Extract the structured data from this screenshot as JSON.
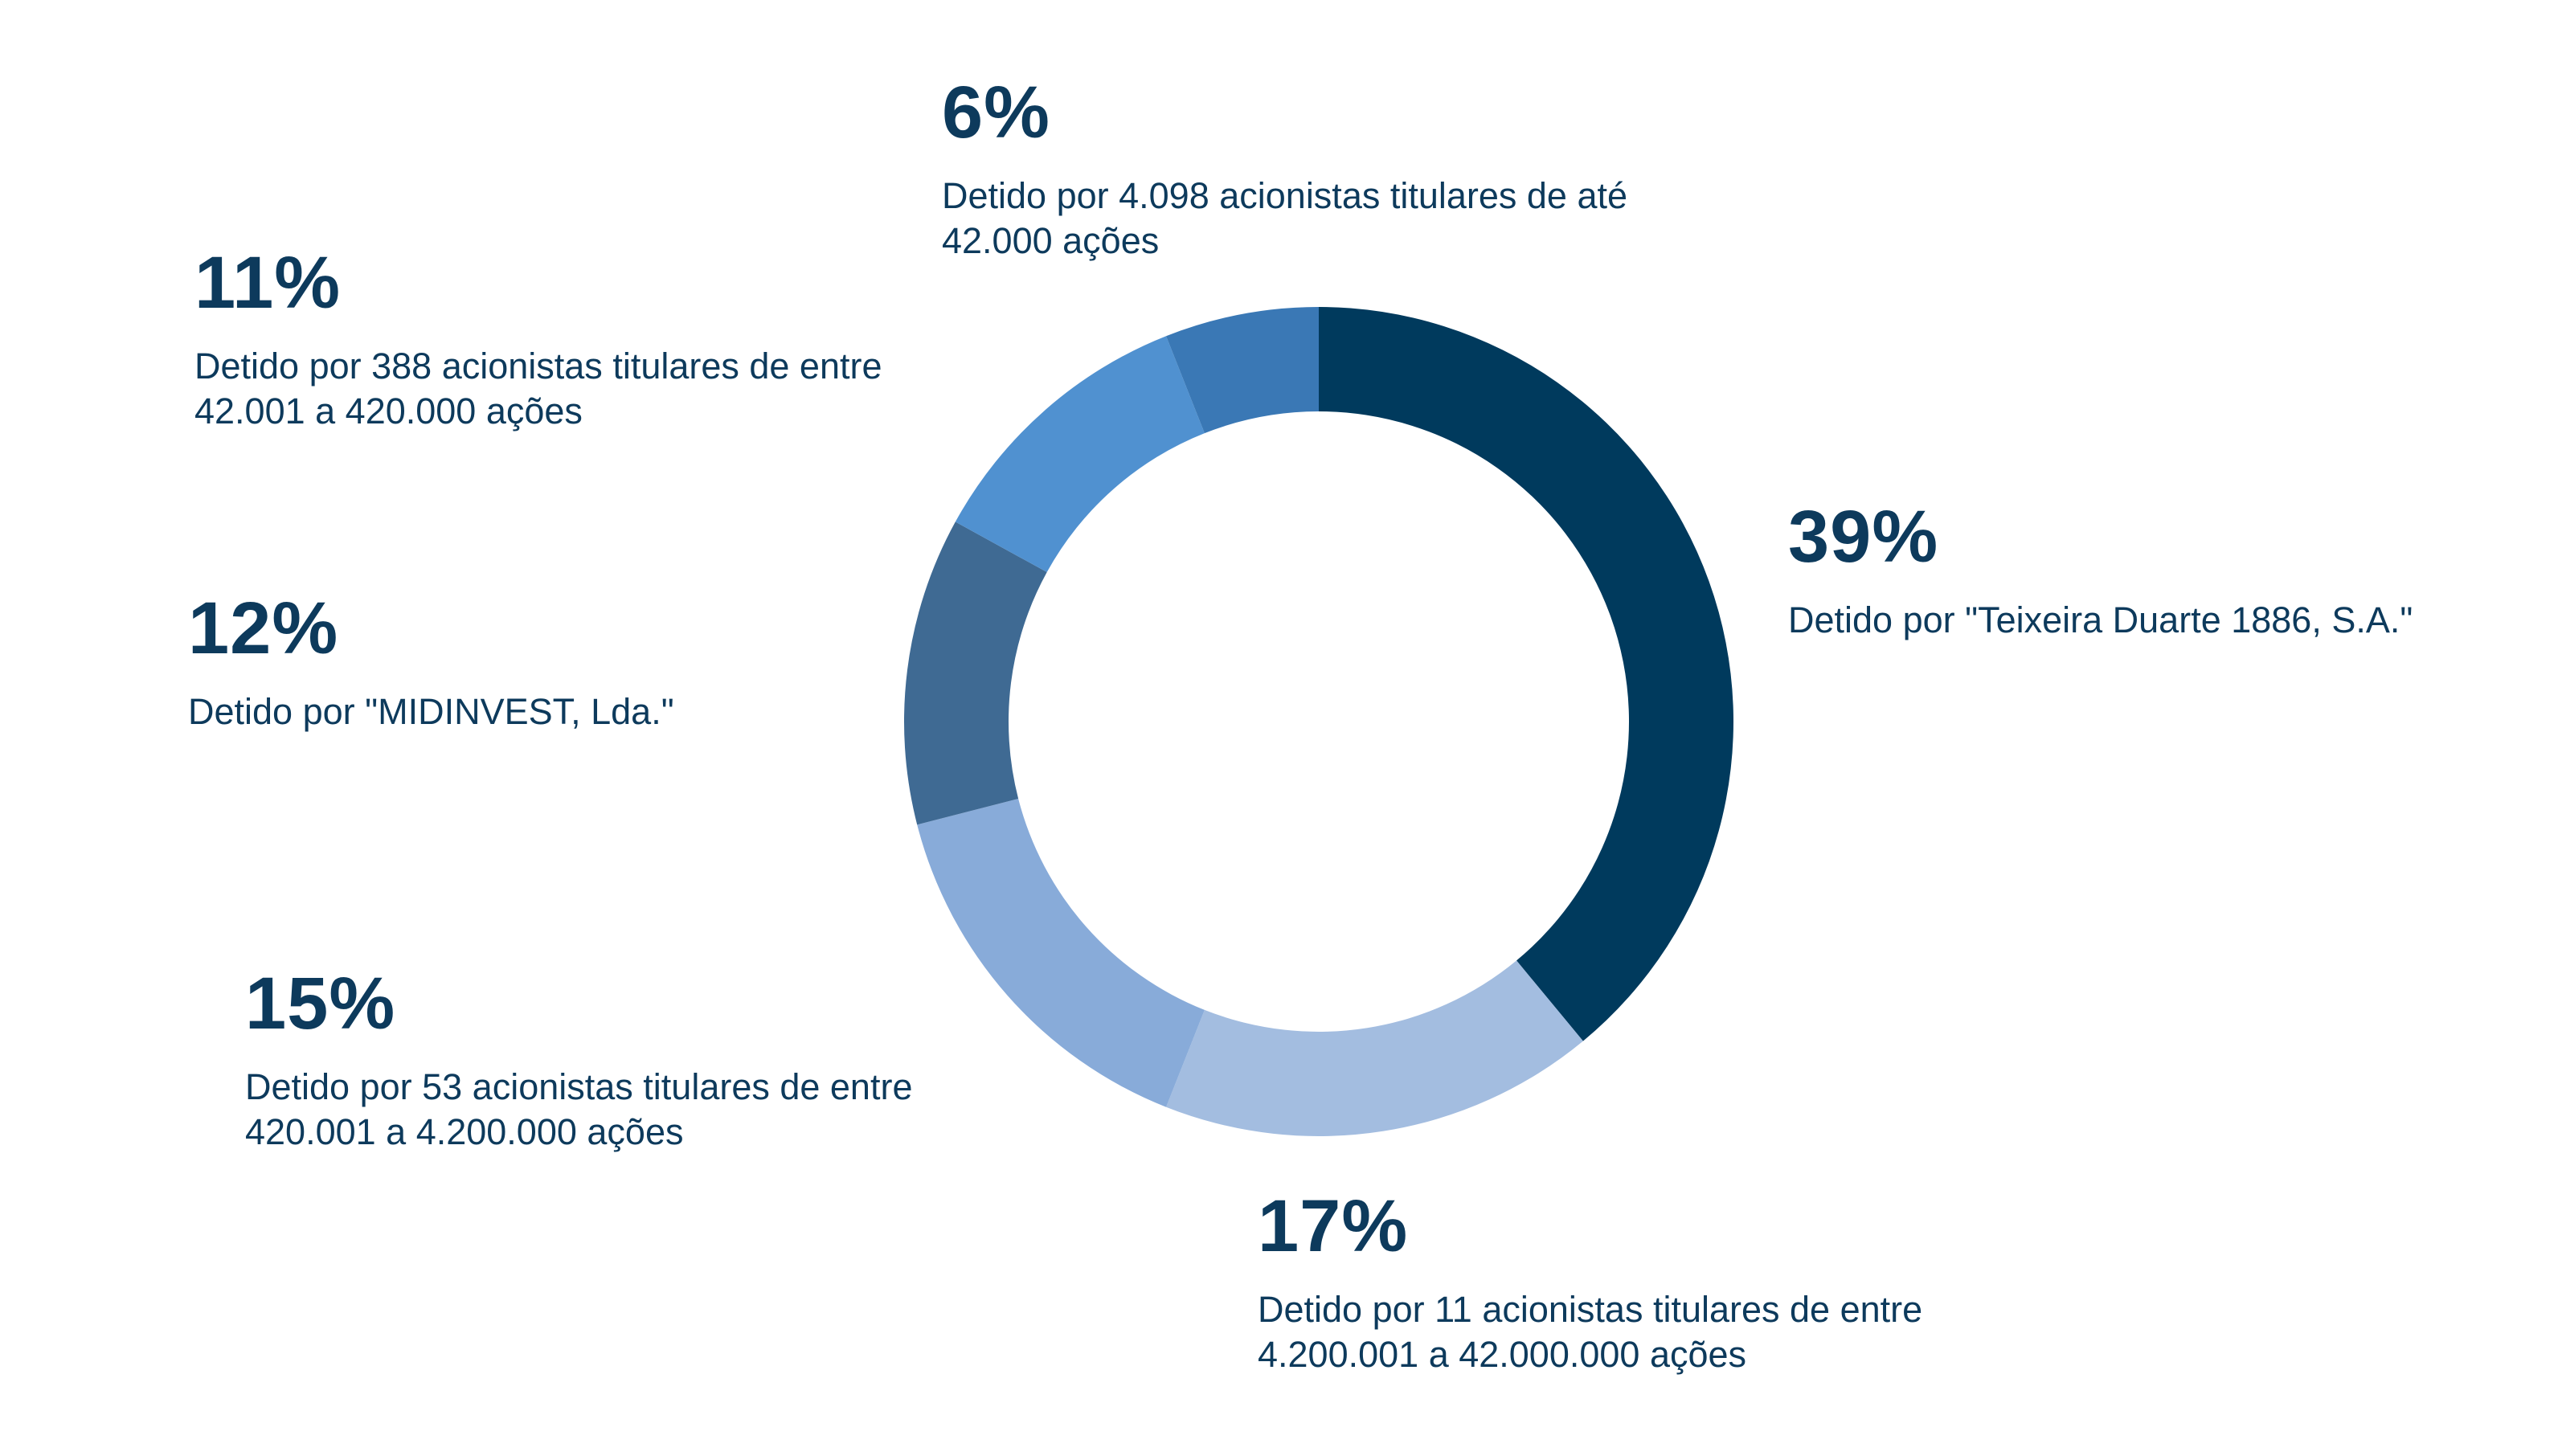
{
  "chart_data": {
    "type": "pie",
    "variant": "donut",
    "start_angle_deg": 0,
    "direction": "clockwise",
    "slices": [
      {
        "percent_label": "39%",
        "value": 39,
        "description": "Detido por \"Teixeira Duarte 1886, S.A.\"",
        "color": "#003a5d"
      },
      {
        "percent_label": "17%",
        "value": 17,
        "description": "Detido por 11 acionistas titulares de entre\n4.200.001 a 42.000.000 ações",
        "color": "#a3bde0"
      },
      {
        "percent_label": "15%",
        "value": 15,
        "description": "Detido por 53 acionistas titulares de entre\n420.001 a 4.200.000 ações",
        "color": "#88abd9"
      },
      {
        "percent_label": "12%",
        "value": 12,
        "description": "Detido por \"MIDINVEST, Lda.\"",
        "color": "#3f6a93"
      },
      {
        "percent_label": "11%",
        "value": 11,
        "description": "Detido por 388 acionistas titulares de entre\n42.001 a 420.000 ações",
        "color": "#5091d0"
      },
      {
        "percent_label": "6%",
        "value": 6,
        "description": "Detido por 4.098 acionistas titulares de até\n42.000 ações",
        "color": "#3a78b5"
      }
    ]
  }
}
